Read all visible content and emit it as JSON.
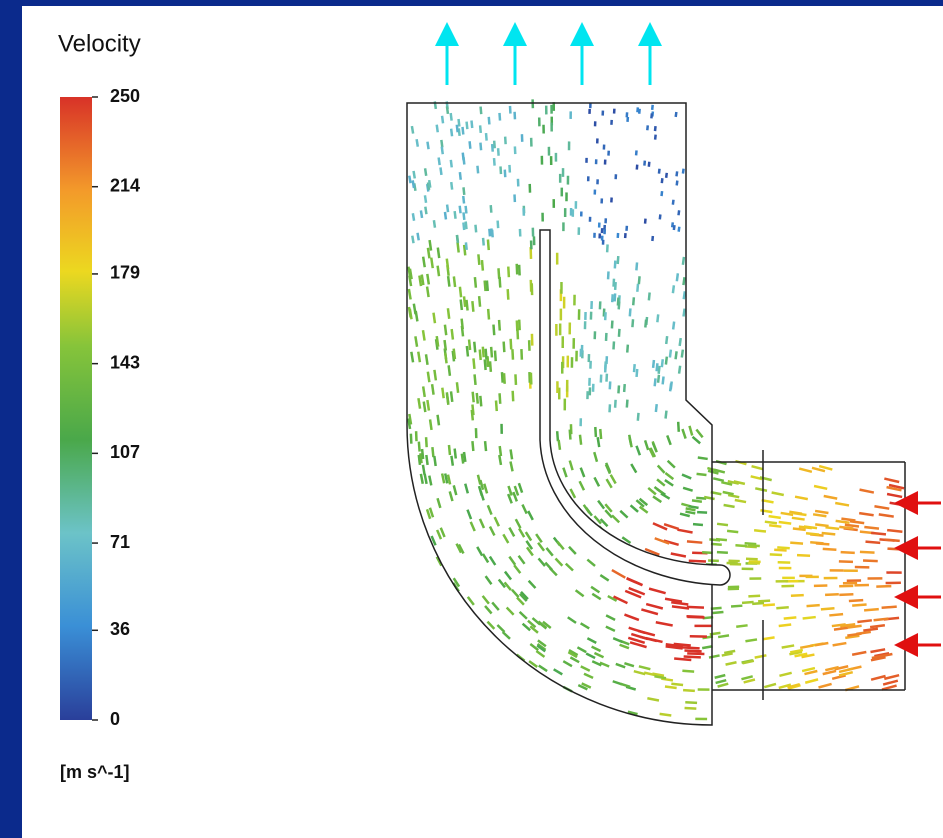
{
  "legend": {
    "title": "Velocity",
    "range": [
      0,
      250
    ],
    "ticks": [
      250,
      214,
      179,
      143,
      107,
      71,
      36,
      0
    ],
    "unit": "[m s^-1]"
  }
}
